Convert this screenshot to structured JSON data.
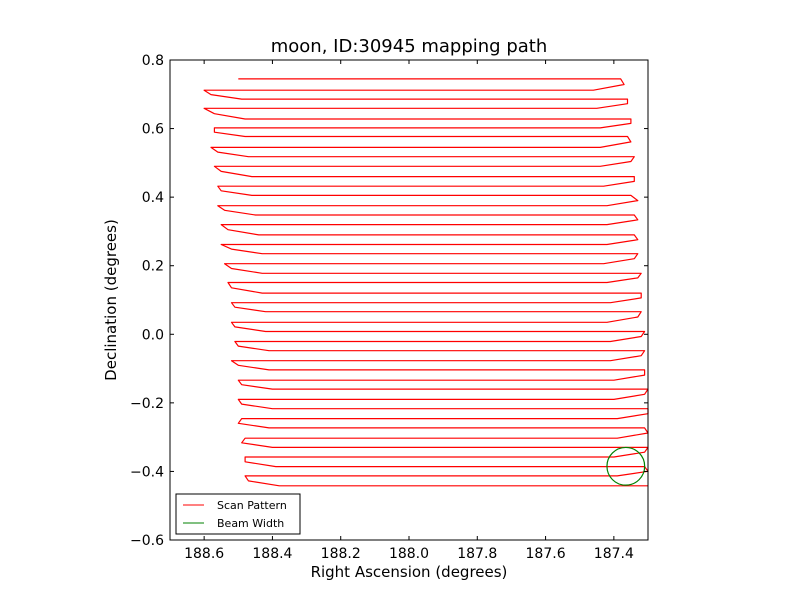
{
  "chart_data": {
    "type": "line",
    "title": "moon, ID:30945 mapping path",
    "xlabel": "Right Ascension (degrees)",
    "ylabel": "Declination (degrees)",
    "xlim": [
      188.7,
      187.3
    ],
    "ylim": [
      -0.6,
      0.8
    ],
    "x_inverted": true,
    "xticks": [
      188.6,
      188.4,
      188.2,
      188.0,
      187.8,
      187.6,
      187.4
    ],
    "xtick_labels": [
      "188.6",
      "188.4",
      "188.2",
      "188.0",
      "187.8",
      "187.6",
      "187.4"
    ],
    "yticks": [
      0.8,
      0.6,
      0.4,
      0.2,
      0.0,
      -0.2,
      -0.4,
      -0.6
    ],
    "ytick_labels": [
      "0.8",
      "0.6",
      "0.4",
      "0.2",
      "0.0",
      "−0.2",
      "−0.4",
      "−0.6"
    ],
    "legend_position": "lower-left",
    "series": [
      {
        "name": "Scan Pattern",
        "color": "#ff0000",
        "style": "boustrophedon raster scan",
        "scan_row_declinations": [
          0.745,
          0.712,
          0.686,
          0.659,
          0.628,
          0.602,
          0.577,
          0.545,
          0.518,
          0.49,
          0.46,
          0.432,
          0.405,
          0.375,
          0.348,
          0.32,
          0.29,
          0.262,
          0.235,
          0.206,
          0.178,
          0.151,
          0.12,
          0.092,
          0.066,
          0.035,
          0.008,
          -0.021,
          -0.048,
          -0.077,
          -0.104,
          -0.134,
          -0.16,
          -0.19,
          -0.217,
          -0.246,
          -0.273,
          -0.303,
          -0.33,
          -0.358,
          -0.386,
          -0.413,
          -0.442
        ],
        "east_turnaround_ra": [
          187.38,
          187.37,
          187.36,
          187.36,
          187.35,
          187.35,
          187.36,
          187.35,
          187.34,
          187.35,
          187.34,
          187.34,
          187.35,
          187.33,
          187.34,
          187.33,
          187.34,
          187.33,
          187.33,
          187.34,
          187.32,
          187.33,
          187.32,
          187.32,
          187.32,
          187.33,
          187.31,
          187.32,
          187.31,
          187.32,
          187.31,
          187.31,
          187.3,
          187.31,
          187.3,
          187.3,
          187.31,
          187.3,
          187.3,
          187.31,
          187.31,
          187.3,
          187.3
        ],
        "west_turnaround_ra": [
          188.5,
          188.6,
          188.58,
          188.6,
          188.57,
          188.57,
          188.57,
          188.58,
          188.56,
          188.57,
          188.55,
          188.56,
          188.55,
          188.56,
          188.54,
          188.55,
          188.53,
          188.55,
          188.52,
          188.54,
          188.52,
          188.53,
          188.52,
          188.52,
          188.51,
          188.52,
          188.51,
          188.51,
          188.5,
          188.52,
          188.5,
          188.5,
          188.49,
          188.5,
          188.49,
          188.49,
          188.5,
          188.48,
          188.49,
          188.48,
          188.48,
          188.48,
          188.47
        ]
      },
      {
        "name": "Beam Width",
        "color": "#008000",
        "shape": "circle",
        "center": [
          187.365,
          -0.385
        ],
        "radius_deg": 0.055
      }
    ]
  }
}
